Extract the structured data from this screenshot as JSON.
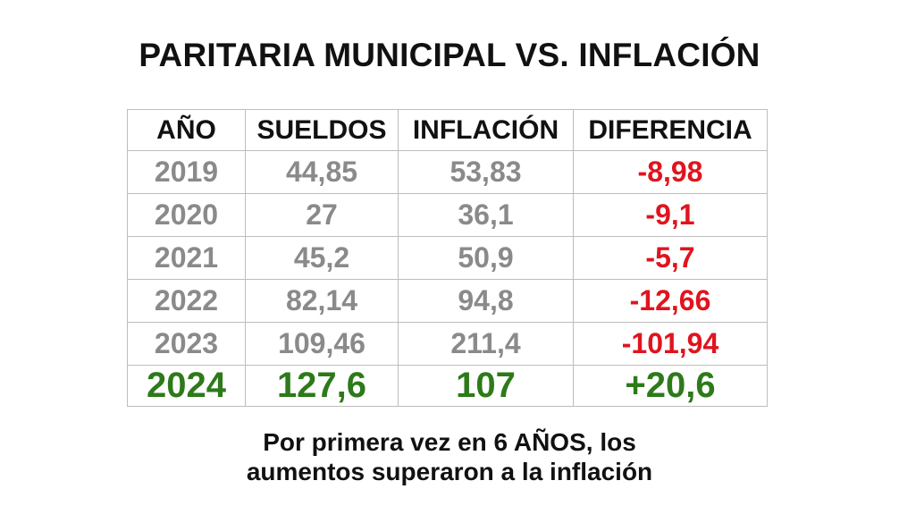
{
  "title": "PARITARIA MUNICIPAL VS. INFLACIÓN",
  "chart_data": {
    "type": "table",
    "columns": [
      "AÑO",
      "SUELDOS",
      "INFLACIÓN",
      "DIFERENCIA"
    ],
    "rows": [
      [
        "2019",
        "44,85",
        "53,83",
        "-8,98"
      ],
      [
        "2020",
        "27",
        "36,1",
        "-9,1"
      ],
      [
        "2021",
        "45,2",
        "50,9",
        "-5,7"
      ],
      [
        "2022",
        "82,14",
        "94,8",
        "-12,66"
      ],
      [
        "2023",
        "109,46",
        "211,4",
        "-101,94"
      ],
      [
        "2024",
        "127,6",
        "107",
        "+20,6"
      ]
    ]
  },
  "footer": {
    "line1": "Por primera vez en 6 AÑOS, los",
    "line2": "aumentos superaron a la inflación"
  },
  "colors": {
    "text": "#111111",
    "past_values": "#8a8a8a",
    "negative_difference": "#e0141e",
    "highlight_row": "#2d7a1a",
    "grid": "#bdbdbd"
  }
}
